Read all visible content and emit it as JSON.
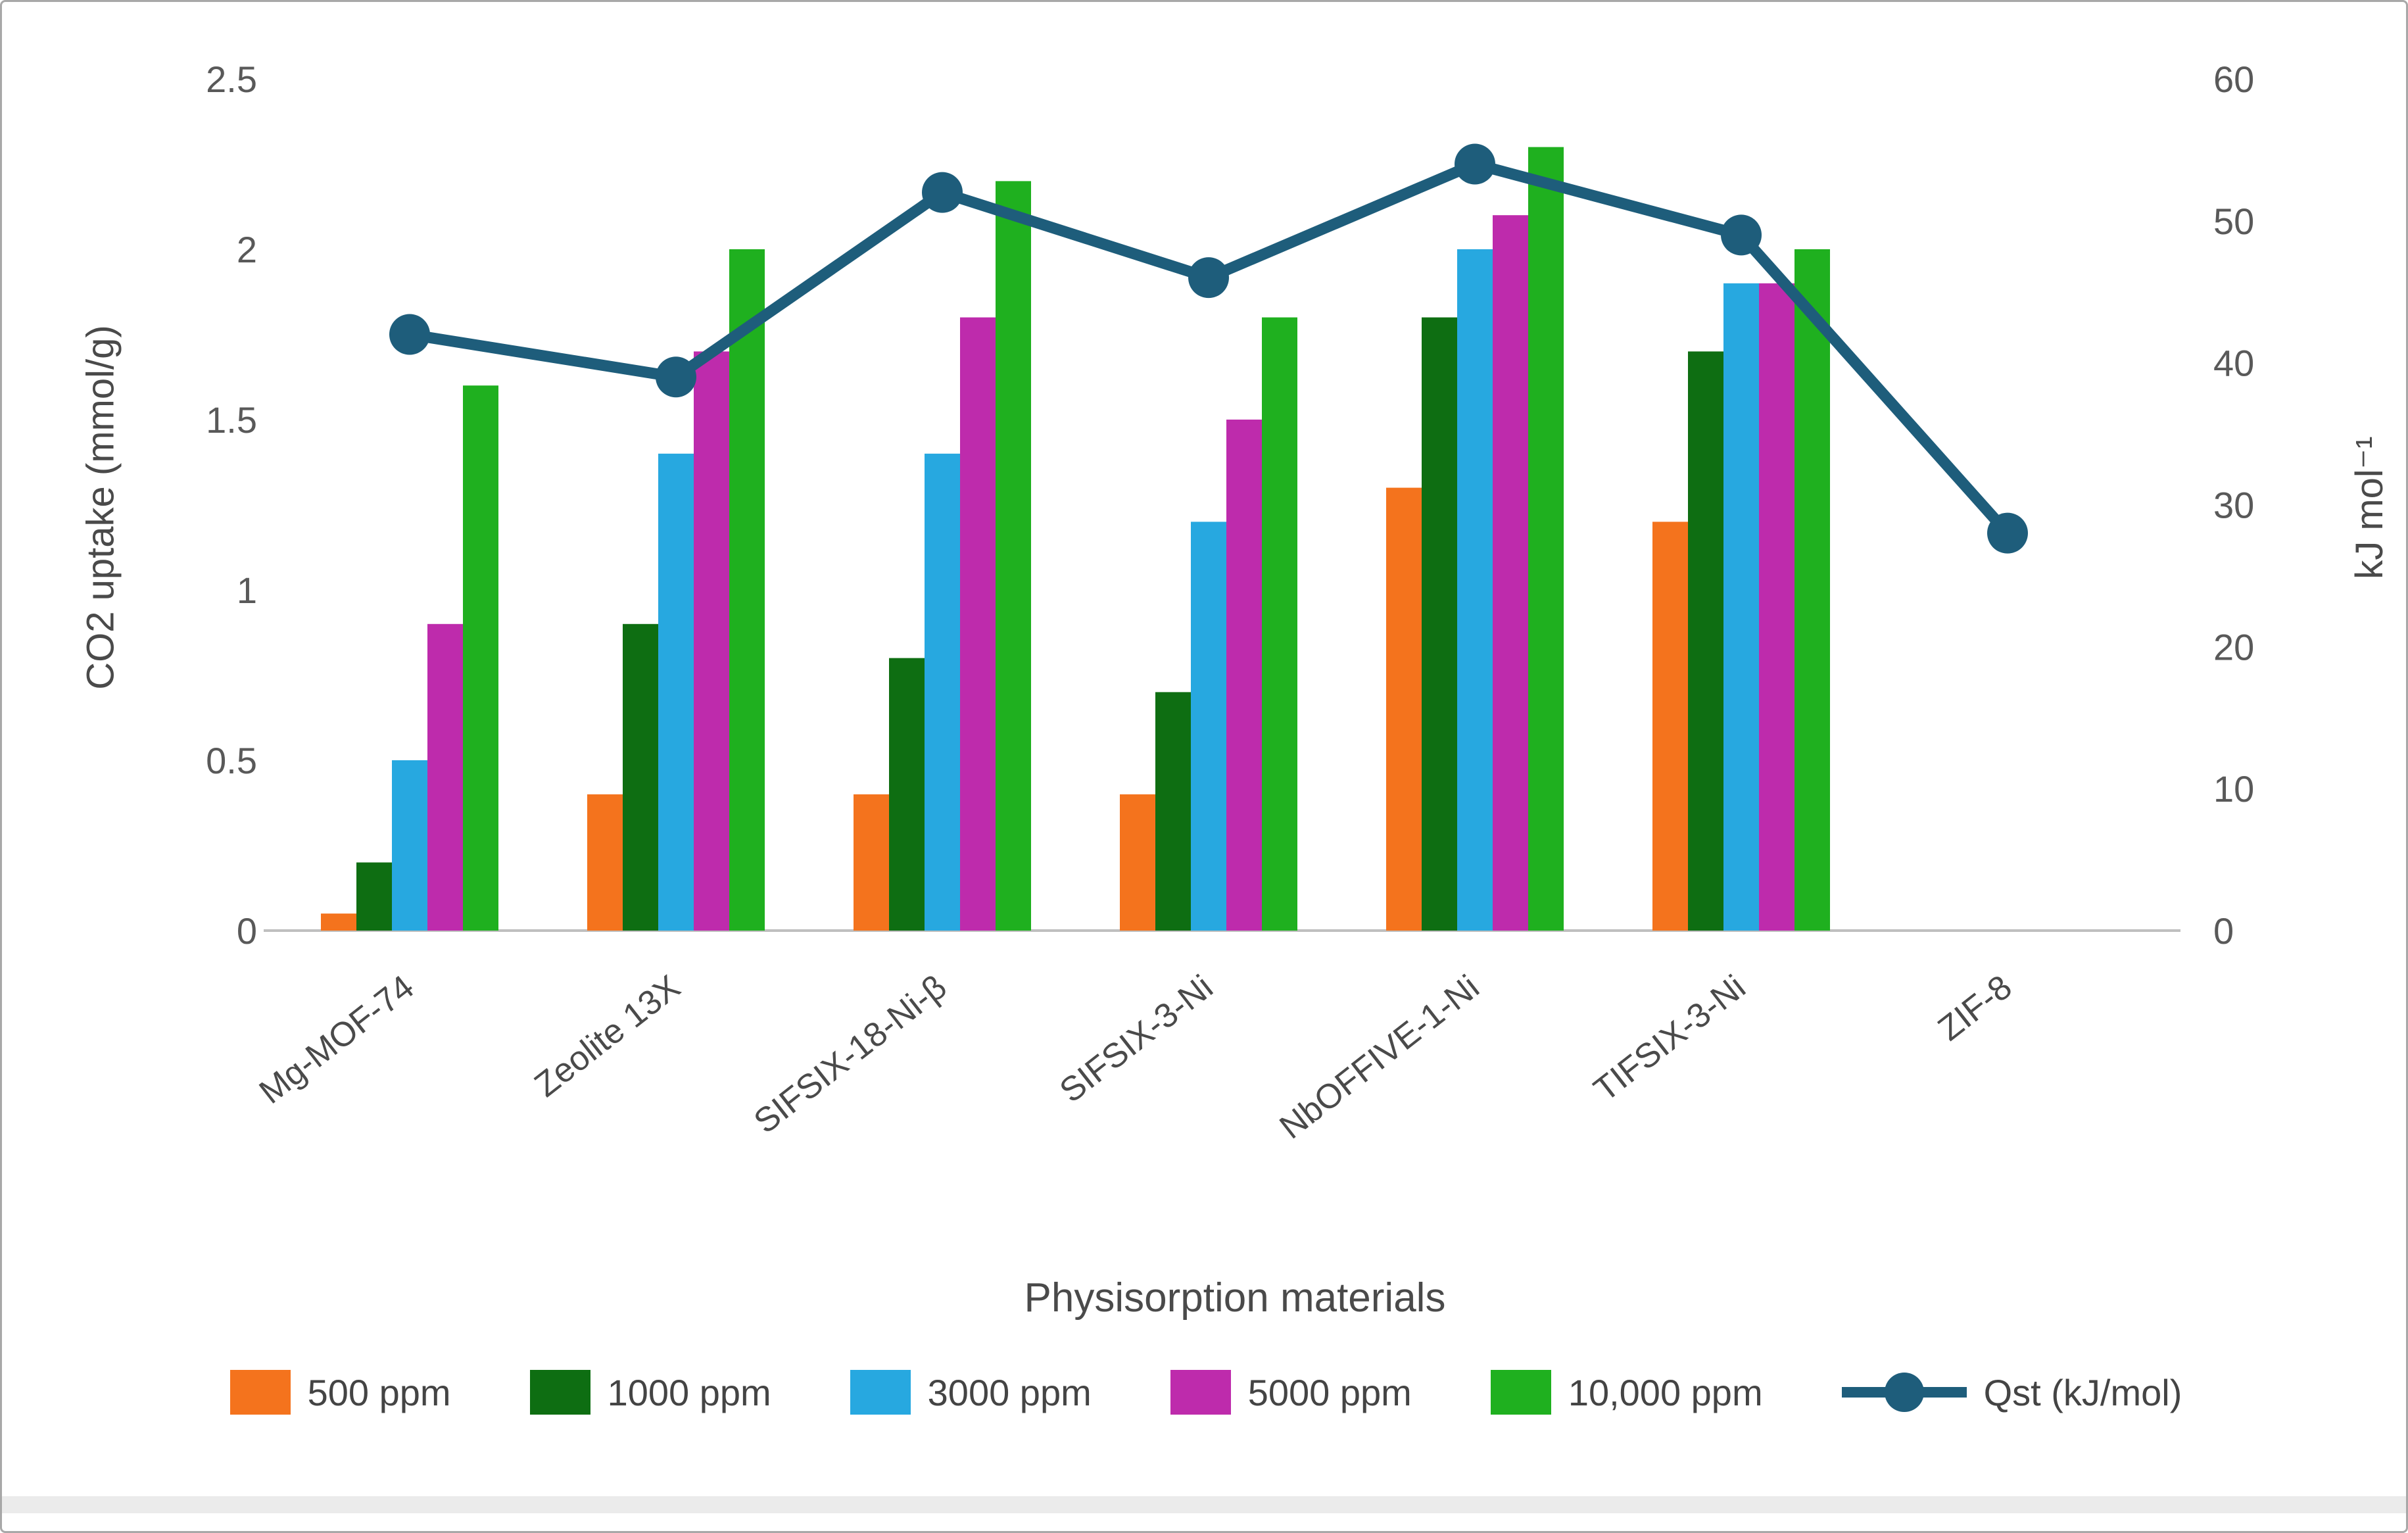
{
  "chart_data": {
    "type": "bar",
    "subtype": "grouped-bars-with-line",
    "categories": [
      "Mg-MOF-74",
      "Zeolite 13X",
      "SIFSIX-18-Ni-β",
      "SIFSIX-3-Ni",
      "NbOFFIVE-1-Ni",
      "TIFSIX-3-Ni",
      "ZIF-8"
    ],
    "series": [
      {
        "name": "500 ppm",
        "type": "bar",
        "axis": "left",
        "color": "#F4731D",
        "values": [
          0.05,
          0.4,
          0.4,
          0.4,
          1.3,
          1.2,
          null
        ]
      },
      {
        "name": "1000 ppm",
        "type": "bar",
        "axis": "left",
        "color": "#0E6E12",
        "values": [
          0.2,
          0.9,
          0.8,
          0.7,
          1.8,
          1.7,
          null
        ]
      },
      {
        "name": "3000 ppm",
        "type": "bar",
        "axis": "left",
        "color": "#27A8E0",
        "values": [
          0.5,
          1.4,
          1.4,
          1.2,
          2.0,
          1.9,
          null
        ]
      },
      {
        "name": "5000 ppm",
        "type": "bar",
        "axis": "left",
        "color": "#BE2BAC",
        "values": [
          0.9,
          1.7,
          1.8,
          1.5,
          2.1,
          1.9,
          null
        ]
      },
      {
        "name": "10,000 ppm",
        "type": "bar",
        "axis": "left",
        "color": "#1FB01F",
        "values": [
          1.6,
          2.0,
          2.2,
          1.8,
          2.3,
          2.0,
          null
        ]
      },
      {
        "name": "Qst (kJ/mol)",
        "type": "line",
        "axis": "right",
        "color": "#1E5D7B",
        "values": [
          42,
          39,
          52,
          46,
          54,
          49,
          28
        ]
      }
    ],
    "left_axis": {
      "title": "CO2 uptake (mmol/g)",
      "range": [
        0,
        2.5
      ],
      "tick_labels": [
        "0",
        "0.5",
        "1",
        "1.5",
        "2",
        "2.5"
      ],
      "tick_values": [
        0,
        0.5,
        1,
        1.5,
        2,
        2.5
      ]
    },
    "right_axis": {
      "title": "kJ mol⁻¹",
      "range": [
        0,
        60
      ],
      "tick_labels": [
        "0",
        "10",
        "20",
        "30",
        "40",
        "50",
        "60"
      ],
      "tick_values": [
        0,
        10,
        20,
        30,
        40,
        50,
        60
      ]
    },
    "x_axis": {
      "title": "Physisorption materials"
    },
    "legend_position": "bottom",
    "grid": false,
    "tick_text_color": "#595959",
    "axis_line_color": "#bfbfbf"
  }
}
